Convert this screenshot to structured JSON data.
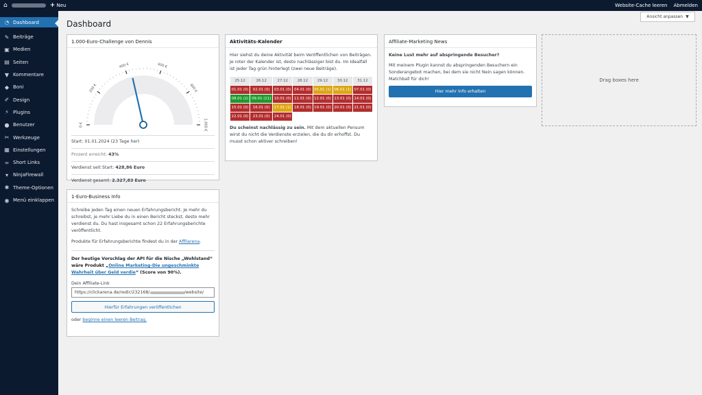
{
  "adminbar": {
    "new_label": "Neu",
    "clear_cache": "Website-Cache leeren",
    "logout": "Abmelden"
  },
  "sidebar": {
    "items": [
      {
        "label": "Dashboard",
        "icon": "dashboard-icon",
        "active": true
      },
      {
        "label": "Beiträge",
        "icon": "pin-icon"
      },
      {
        "label": "Medien",
        "icon": "media-icon"
      },
      {
        "label": "Seiten",
        "icon": "pages-icon"
      },
      {
        "label": "Kommentare",
        "icon": "comment-icon"
      },
      {
        "label": "Boni",
        "icon": "tag-icon"
      },
      {
        "label": "Design",
        "icon": "brush-icon"
      },
      {
        "label": "Plugins",
        "icon": "plugin-icon"
      },
      {
        "label": "Benutzer",
        "icon": "user-icon"
      },
      {
        "label": "Werkzeuge",
        "icon": "wrench-icon"
      },
      {
        "label": "Einstellungen",
        "icon": "settings-icon"
      },
      {
        "label": "Short Links",
        "icon": "link-icon"
      },
      {
        "label": "NinjaFirewall",
        "icon": "ninja-icon"
      },
      {
        "label": "Theme-Optionen",
        "icon": "gear-icon"
      },
      {
        "label": "Menü einklappen",
        "icon": "collapse-icon"
      }
    ]
  },
  "page": {
    "title": "Dashboard",
    "screen_options": "Ansicht anpassen",
    "drop_text": "Drag boxes here"
  },
  "challenge": {
    "title": "1.000-Euro-Challenge von Dennis",
    "gauge": {
      "min": 0,
      "max": 1000,
      "value": 428.86,
      "labels": [
        "0 €",
        "200 €",
        "400 €",
        "600 €",
        "800 €",
        "1.000 €"
      ],
      "needle_color": "#2271b1"
    },
    "rows": {
      "start_label": "Start: ",
      "start": "01.01.2024 (23 Tage her)",
      "pct_label": "Prozent erreicht: ",
      "pct": "43%",
      "since_label": "Verdienst seit Start: ",
      "since": "428,86 Euro",
      "total_label": "Verdienst gesamt: ",
      "total": "2.327,83 Euro"
    }
  },
  "calendar": {
    "title": "Aktivitäts-Kalender",
    "intro": "Hier siehst du deine Aktivität beim Veröffentlichen von Beiträgen. Je roter der Kalender ist, desto nachlässiger bist du. Im Idealfall ist jeder Tag grün hinterlegt (zwei neue Beiträge).",
    "headers": [
      "25.12",
      "26.12",
      "27.12",
      "28.12",
      "29.12",
      "30.12",
      "31.12"
    ],
    "days": [
      {
        "label": "01.01 (0)",
        "status": "red"
      },
      {
        "label": "02.01 (0)",
        "status": "red"
      },
      {
        "label": "03.01 (0)",
        "status": "red"
      },
      {
        "label": "04.01 (0)",
        "status": "red"
      },
      {
        "label": "05.01 (1)",
        "status": "yel"
      },
      {
        "label": "06.01 (1)",
        "status": "yel"
      },
      {
        "label": "07.01 (0)",
        "status": "red"
      },
      {
        "label": "08.01 (2)",
        "status": "grn"
      },
      {
        "label": "09.01 (11)",
        "status": "grn"
      },
      {
        "label": "10.01 (0)",
        "status": "red"
      },
      {
        "label": "11.01 (0)",
        "status": "red"
      },
      {
        "label": "12.01 (0)",
        "status": "red"
      },
      {
        "label": "13.01 (0)",
        "status": "red"
      },
      {
        "label": "14.01 (0)",
        "status": "red"
      },
      {
        "label": "15.01 (0)",
        "status": "red"
      },
      {
        "label": "16.01 (0)",
        "status": "red"
      },
      {
        "label": "17.01 (1)",
        "status": "yel"
      },
      {
        "label": "18.01 (0)",
        "status": "red"
      },
      {
        "label": "19.01 (0)",
        "status": "red"
      },
      {
        "label": "20.01 (0)",
        "status": "red"
      },
      {
        "label": "21.01 (0)",
        "status": "red"
      },
      {
        "label": "22.01 (0)",
        "status": "red"
      },
      {
        "label": "23.01 (0)",
        "status": "red"
      },
      {
        "label": "24.01 (0)",
        "status": "red"
      }
    ],
    "verdict_bold": "Du scheinst nachlässig zu sein.",
    "verdict": " Mit dem aktuellen Pensum wirst du nicht die Verdienste erzielen, die du dir erhoffst. Du musst schon aktiver schreiben!"
  },
  "news": {
    "title": "Affiliate-Marketing News",
    "headline": "Keine Lust mehr auf abspringende Besucher?",
    "text": "Mit meinem Plugin kannst du abspringenden Besuchern ein Sonderangebot machen, bei dem sie nicht Nein sagen können. Matchball für dich!",
    "button": "Hier mehr Info erhalten"
  },
  "business": {
    "title": "1-Euro-Business Info",
    "p1": "Schreibe jeden Tag einen neuen Erfahrungsbericht. Je mehr du schreibst, je mehr Liebe du in einen Bericht steckst, desto mehr verdienst du. Du hast insgesamt schon 22 Erfahrungsberichte veröffentlicht.",
    "p2": "Produkte für Erfahrungsberichte findest du in der ",
    "p2_link": "Affilarena",
    "p2_end": ".",
    "sugg1": "Der heutige Vorschlag der API für die Nische „Wohlstand“ wäre Produkt „",
    "sugg_link": "Online Marketing-Die ungeschminkte Wahrheit über Geld verdie",
    "sugg2": "“ (Score von 90%).",
    "link_label": "Dein Affiliate-Link",
    "link_prefix": "https://clickarena.de/redir/232168/",
    "link_suffix": "/website/",
    "button": "Hierfür Erfahrungen veröffentlichen",
    "or": "oder ",
    "or_link": "beginne einen leeren Beitrag."
  }
}
